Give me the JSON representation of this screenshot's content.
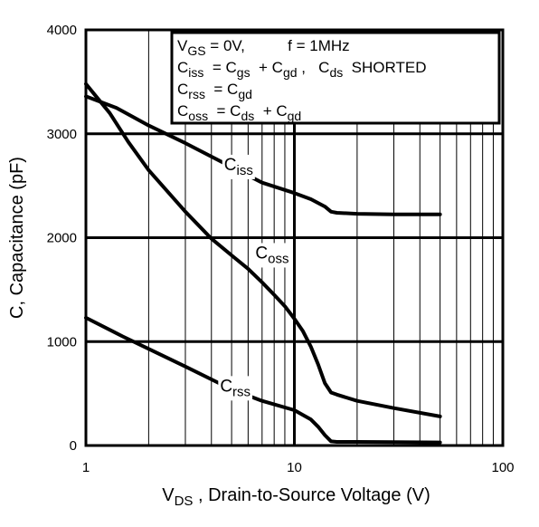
{
  "chart_data": {
    "type": "line",
    "title": "",
    "xlabel": {
      "main": "V",
      "sub": "DS",
      "rest": " , Drain-to-Source Voltage (V)"
    },
    "ylabel": "C, Capacitance (pF)",
    "xscale": "log",
    "xlim": [
      1,
      100
    ],
    "ylim": [
      0,
      4000
    ],
    "x_ticks": [
      {
        "value": 1,
        "label": "1"
      },
      {
        "value": 10,
        "label": "10"
      },
      {
        "value": 100,
        "label": "100"
      }
    ],
    "y_ticks": [
      {
        "value": 0,
        "label": "0"
      },
      {
        "value": 1000,
        "label": "1000"
      },
      {
        "value": 2000,
        "label": "2000"
      },
      {
        "value": 3000,
        "label": "3000"
      },
      {
        "value": 4000,
        "label": "4000"
      }
    ],
    "grid": true,
    "legend_position": "top-right",
    "legend_lines": [
      [
        {
          "t": "V"
        },
        {
          "t": "GS",
          "sub": true
        },
        {
          "t": " = 0V,          f = 1MHz"
        }
      ],
      [
        {
          "t": "C"
        },
        {
          "t": "iss",
          "sub": true
        },
        {
          "t": "  = C"
        },
        {
          "t": "gs",
          "sub": true
        },
        {
          "t": "  + C"
        },
        {
          "t": "gd",
          "sub": true
        },
        {
          "t": " ,   C"
        },
        {
          "t": "ds",
          "sub": true
        },
        {
          "t": "  SHORTED"
        }
      ],
      [
        {
          "t": "C"
        },
        {
          "t": "rss",
          "sub": true
        },
        {
          "t": "  = C"
        },
        {
          "t": "gd",
          "sub": true
        }
      ],
      [
        {
          "t": "C"
        },
        {
          "t": "oss",
          "sub": true
        },
        {
          "t": "  = C"
        },
        {
          "t": "ds",
          "sub": true
        },
        {
          "t": "  + C"
        },
        {
          "t": "gd",
          "sub": true
        }
      ]
    ],
    "series": [
      {
        "name": "Ciss",
        "label": {
          "main": "C",
          "sub": "iss",
          "x": 4.6,
          "y": 2650
        },
        "x": [
          1,
          1.4,
          2,
          3,
          5,
          7,
          10,
          12,
          14,
          15,
          16,
          20,
          30,
          50
        ],
        "y": [
          3360,
          3250,
          3080,
          2910,
          2680,
          2530,
          2430,
          2370,
          2300,
          2250,
          2240,
          2230,
          2225,
          2225
        ]
      },
      {
        "name": "Coss",
        "label": {
          "main": "C",
          "sub": "oss",
          "x": 6.5,
          "y": 1800
        },
        "x": [
          1,
          1.3,
          1.6,
          2,
          3,
          4,
          5,
          6,
          7,
          8,
          9,
          10,
          11,
          12,
          13,
          14,
          15,
          16,
          20,
          30,
          50
        ],
        "y": [
          3480,
          3200,
          2920,
          2650,
          2250,
          1990,
          1830,
          1700,
          1570,
          1450,
          1340,
          1220,
          1100,
          950,
          780,
          600,
          510,
          490,
          430,
          360,
          280
        ]
      },
      {
        "name": "Crss",
        "label": {
          "main": "C",
          "sub": "rss",
          "x": 4.4,
          "y": 520
        },
        "x": [
          1,
          1.5,
          2,
          3,
          5,
          7,
          10,
          12,
          13,
          14,
          15,
          16,
          20,
          30,
          50
        ],
        "y": [
          1230,
          1050,
          930,
          760,
          540,
          430,
          340,
          250,
          180,
          100,
          40,
          35,
          35,
          32,
          30
        ]
      }
    ]
  }
}
